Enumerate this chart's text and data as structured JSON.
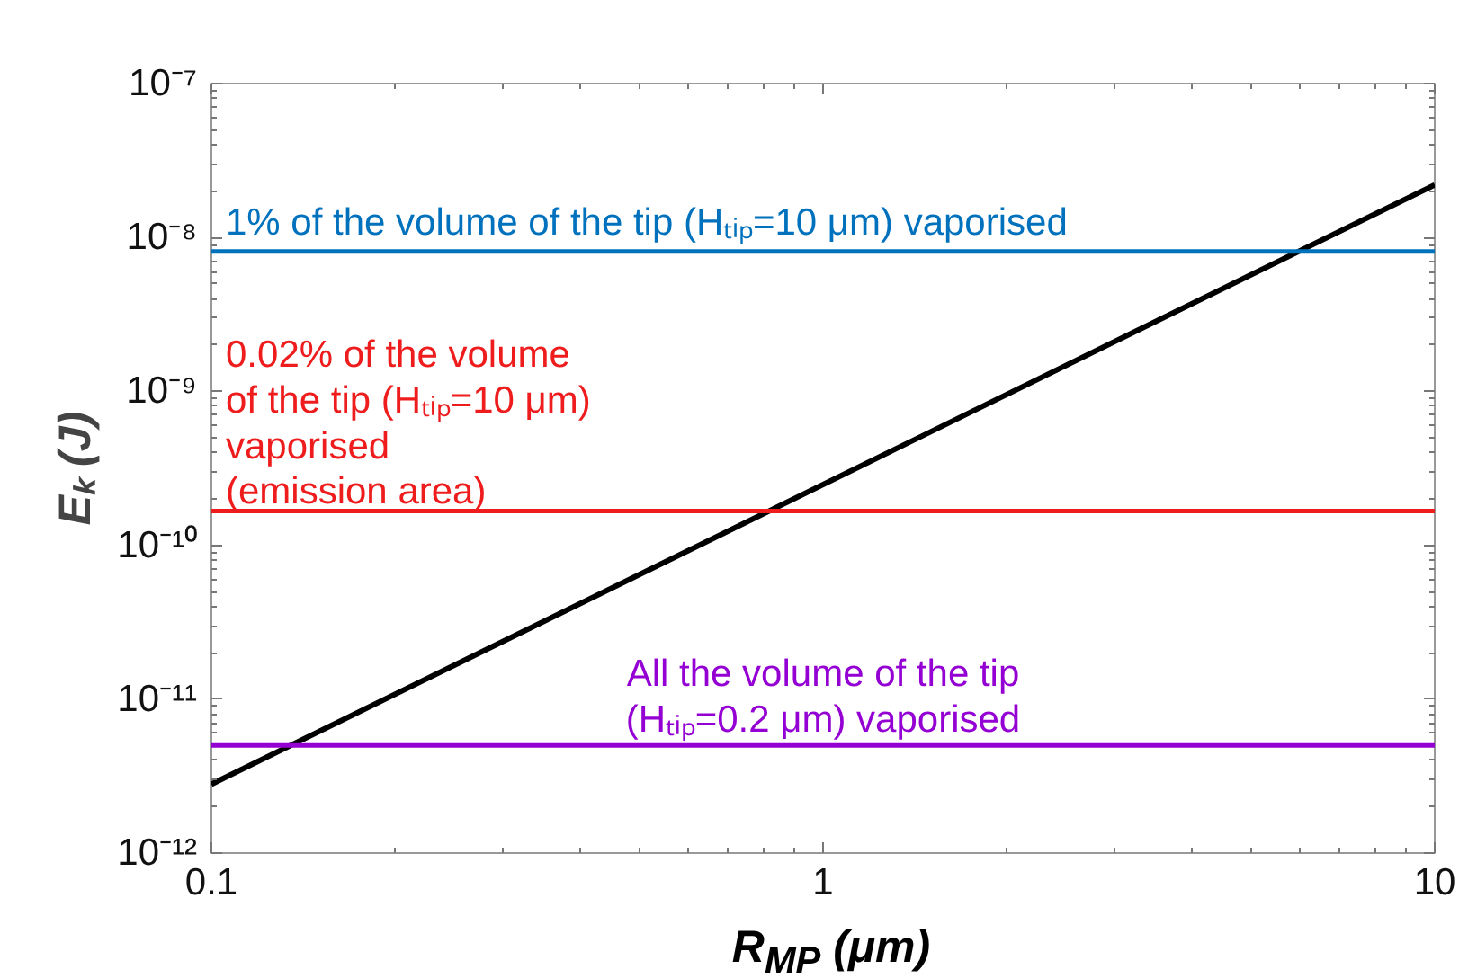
{
  "chart_data": {
    "type": "line",
    "xlabel": "R$_{MP}$ (μm)",
    "ylabel": "Eₖ (J)",
    "log": "xy",
    "grid": false,
    "xlim": [
      0.1,
      10
    ],
    "xticks": [
      0.1,
      1,
      10
    ],
    "ylim": [
      1e-12,
      1e-07
    ],
    "yticks": [
      {
        "value": 1e-12,
        "label": "10⁻¹²"
      },
      {
        "value": 1e-11,
        "label": "10⁻¹¹"
      },
      {
        "value": 1e-10,
        "label": "10⁻¹⁰"
      },
      {
        "value": 1e-09,
        "label": "10⁻⁹"
      },
      {
        "value": 1e-08,
        "label": "10⁻⁸"
      },
      {
        "value": 1e-07,
        "label": "10⁻⁷"
      }
    ],
    "series": [
      {
        "x": [
          0.1,
          10
        ],
        "values": [
          2.8e-12,
          2.2e-08
        ],
        "color": "#000000"
      }
    ],
    "ref_lines": [
      {
        "axis": "y",
        "value": 8.1e-09,
        "color": "#0072bd"
      },
      {
        "axis": "y",
        "value": 1.67e-10,
        "color": "#ee1c1c"
      },
      {
        "axis": "y",
        "value": 5e-12,
        "color": "#9400d3"
      }
    ],
    "annotations": [
      "1% of the volume of the tip (Hₜᵢₚ=10 μm) vaporised",
      "0.02% of the volume\nof the tip (Hₜᵢₚ=10 μm)\nvaporised\n(emission area)",
      "All the volume of the tip\n(Hₜᵢₚ=0.2 μm) vaporised"
    ]
  }
}
